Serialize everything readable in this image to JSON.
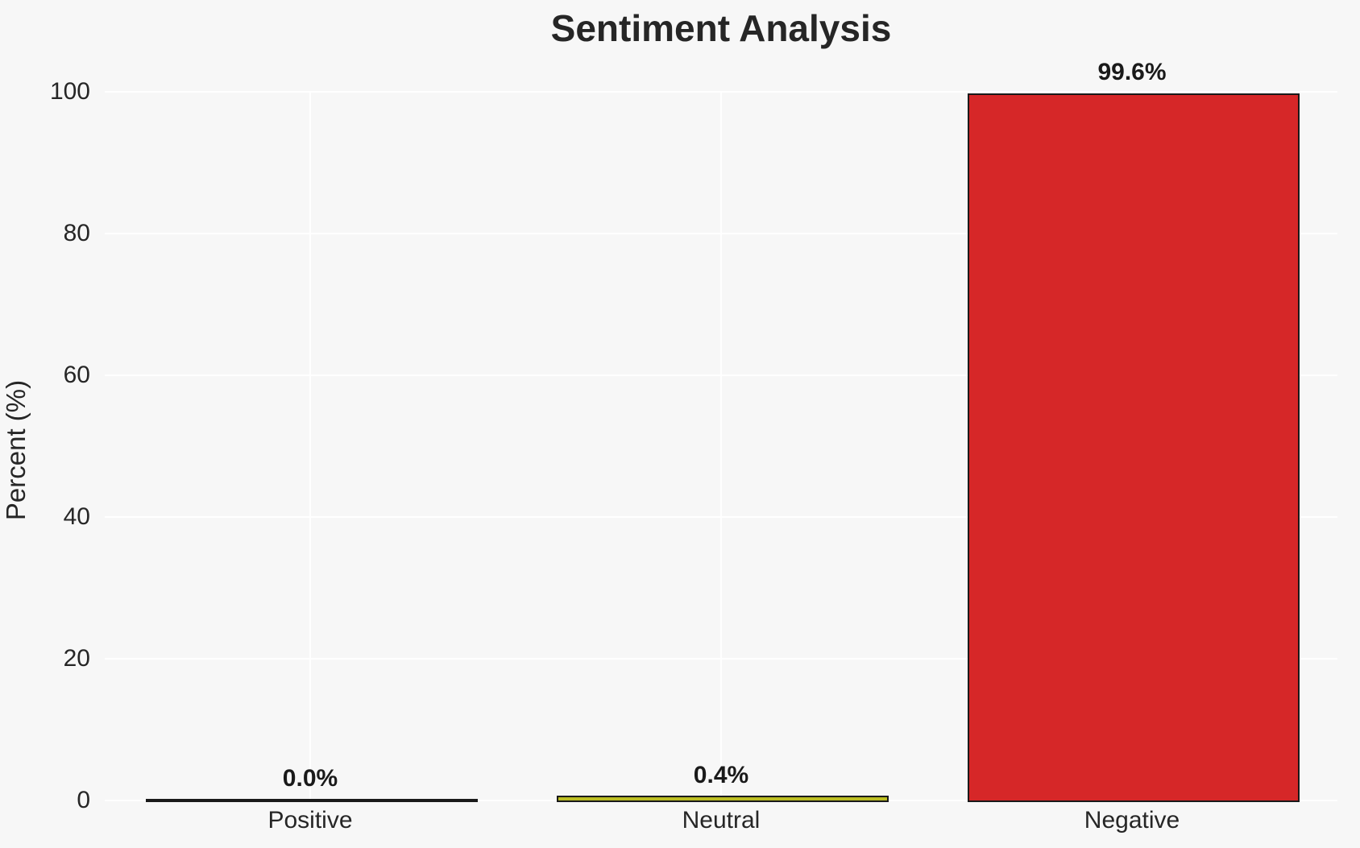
{
  "chart_data": {
    "type": "bar",
    "title": "Sentiment Analysis",
    "xlabel": "",
    "ylabel": "Percent (%)",
    "categories": [
      "Positive",
      "Neutral",
      "Negative"
    ],
    "values": [
      0.0,
      0.4,
      99.6
    ],
    "value_labels": [
      "0.0%",
      "0.4%",
      "99.6%"
    ],
    "bar_colors": [
      "#2ca02c",
      "#bcbd22",
      "#d62728"
    ],
    "bar_edge_color": "#1a1a1a",
    "ylim": [
      0,
      100
    ],
    "yticks": [
      0,
      20,
      40,
      60,
      80,
      100
    ],
    "grid": true,
    "legend": false,
    "background_color": "#f7f7f7",
    "gridline_color": "#ffffff",
    "text_color": "#262626"
  }
}
